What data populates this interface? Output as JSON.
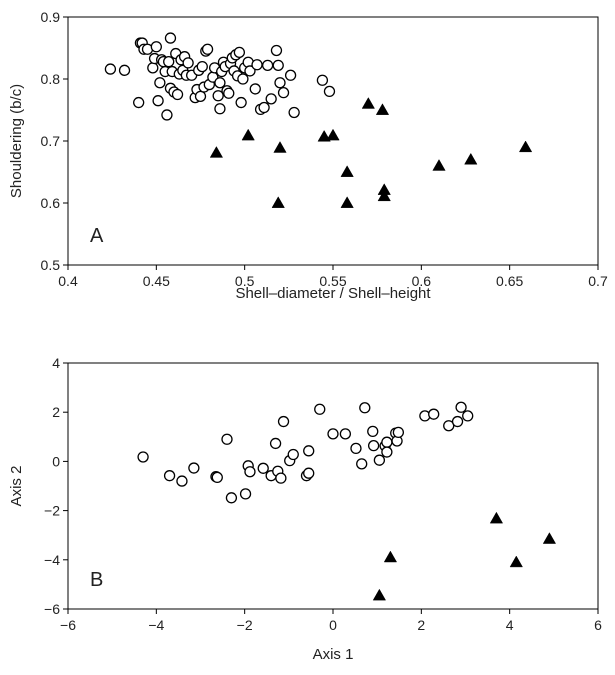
{
  "chart_data": [
    {
      "type": "scatter",
      "panel_label": "A",
      "xlabel": "Shell–diameter / Shell–height",
      "ylabel": "Shouldering (b/c)",
      "xlim": [
        0.4,
        0.7
      ],
      "ylim": [
        0.5,
        0.9
      ],
      "xticks": [
        0.4,
        0.45,
        0.5,
        0.55,
        0.6,
        0.65,
        0.7
      ],
      "yticks": [
        0.5,
        0.6,
        0.7,
        0.8,
        0.9
      ],
      "xtick_labels": [
        "0.4",
        "0.45",
        "0.5",
        "0.55",
        "0.6",
        "0.65",
        "0.7"
      ],
      "ytick_labels": [
        "0.5",
        "0.6",
        "0.7",
        "0.8",
        "0.9"
      ],
      "grid": false,
      "legend": "none",
      "series": [
        {
          "marker": "open-circle",
          "color": "#000000",
          "points": [
            [
              0.424,
              0.816
            ],
            [
              0.432,
              0.814
            ],
            [
              0.44,
              0.762
            ],
            [
              0.441,
              0.858
            ],
            [
              0.442,
              0.858
            ],
            [
              0.443,
              0.848
            ],
            [
              0.445,
              0.848
            ],
            [
              0.448,
              0.818
            ],
            [
              0.449,
              0.833
            ],
            [
              0.45,
              0.852
            ],
            [
              0.451,
              0.765
            ],
            [
              0.452,
              0.794
            ],
            [
              0.453,
              0.831
            ],
            [
              0.454,
              0.828
            ],
            [
              0.455,
              0.812
            ],
            [
              0.456,
              0.742
            ],
            [
              0.457,
              0.828
            ],
            [
              0.458,
              0.785
            ],
            [
              0.458,
              0.866
            ],
            [
              0.459,
              0.812
            ],
            [
              0.46,
              0.779
            ],
            [
              0.461,
              0.841
            ],
            [
              0.462,
              0.775
            ],
            [
              0.463,
              0.808
            ],
            [
              0.464,
              0.831
            ],
            [
              0.465,
              0.814
            ],
            [
              0.466,
              0.836
            ],
            [
              0.467,
              0.806
            ],
            [
              0.468,
              0.826
            ],
            [
              0.47,
              0.806
            ],
            [
              0.472,
              0.77
            ],
            [
              0.473,
              0.783
            ],
            [
              0.474,
              0.814
            ],
            [
              0.475,
              0.772
            ],
            [
              0.476,
              0.82
            ],
            [
              0.477,
              0.787
            ],
            [
              0.478,
              0.845
            ],
            [
              0.479,
              0.848
            ],
            [
              0.48,
              0.791
            ],
            [
              0.482,
              0.803
            ],
            [
              0.483,
              0.818
            ],
            [
              0.485,
              0.773
            ],
            [
              0.486,
              0.752
            ],
            [
              0.486,
              0.794
            ],
            [
              0.487,
              0.812
            ],
            [
              0.488,
              0.827
            ],
            [
              0.489,
              0.82
            ],
            [
              0.49,
              0.781
            ],
            [
              0.491,
              0.777
            ],
            [
              0.492,
              0.825
            ],
            [
              0.493,
              0.834
            ],
            [
              0.494,
              0.813
            ],
            [
              0.495,
              0.839
            ],
            [
              0.496,
              0.805
            ],
            [
              0.497,
              0.843
            ],
            [
              0.498,
              0.762
            ],
            [
              0.499,
              0.8
            ],
            [
              0.5,
              0.818
            ],
            [
              0.502,
              0.827
            ],
            [
              0.503,
              0.813
            ],
            [
              0.506,
              0.784
            ],
            [
              0.507,
              0.823
            ],
            [
              0.509,
              0.751
            ],
            [
              0.511,
              0.754
            ],
            [
              0.513,
              0.822
            ],
            [
              0.515,
              0.768
            ],
            [
              0.518,
              0.846
            ],
            [
              0.519,
              0.822
            ],
            [
              0.52,
              0.794
            ],
            [
              0.522,
              0.778
            ],
            [
              0.526,
              0.806
            ],
            [
              0.528,
              0.746
            ],
            [
              0.544,
              0.798
            ],
            [
              0.548,
              0.78
            ]
          ]
        },
        {
          "marker": "filled-triangle",
          "color": "#000000",
          "points": [
            [
              0.484,
              0.681
            ],
            [
              0.502,
              0.709
            ],
            [
              0.519,
              0.6
            ],
            [
              0.52,
              0.689
            ],
            [
              0.545,
              0.707
            ],
            [
              0.55,
              0.709
            ],
            [
              0.558,
              0.65
            ],
            [
              0.558,
              0.6
            ],
            [
              0.57,
              0.76
            ],
            [
              0.578,
              0.75
            ],
            [
              0.579,
              0.621
            ],
            [
              0.579,
              0.611
            ],
            [
              0.61,
              0.66
            ],
            [
              0.628,
              0.67
            ],
            [
              0.659,
              0.69
            ]
          ]
        }
      ]
    },
    {
      "type": "scatter",
      "panel_label": "B",
      "xlabel": "Axis 1",
      "ylabel": "Axis 2",
      "xlim": [
        -6,
        6
      ],
      "ylim": [
        -6,
        4
      ],
      "xticks": [
        -6,
        -4,
        -2,
        0,
        2,
        4,
        6
      ],
      "yticks": [
        -6,
        -4,
        -2,
        0,
        2,
        4
      ],
      "xtick_labels": [
        "−6",
        "−4",
        "−2",
        "0",
        "2",
        "4",
        "6"
      ],
      "ytick_labels": [
        "−6",
        "−4",
        "−2",
        "0",
        "2",
        "4"
      ],
      "grid": false,
      "legend": "none",
      "series": [
        {
          "marker": "open-circle",
          "color": "#000000",
          "points": [
            [
              -4.3,
              0.18
            ],
            [
              -3.7,
              -0.58
            ],
            [
              -3.42,
              -0.8
            ],
            [
              -3.15,
              -0.27
            ],
            [
              -2.65,
              -0.62
            ],
            [
              -2.62,
              -0.65
            ],
            [
              -2.4,
              0.9
            ],
            [
              -2.3,
              -1.48
            ],
            [
              -1.98,
              -1.32
            ],
            [
              -1.92,
              -0.18
            ],
            [
              -1.88,
              -0.42
            ],
            [
              -1.58,
              -0.28
            ],
            [
              -1.4,
              -0.58
            ],
            [
              -1.3,
              0.73
            ],
            [
              -1.25,
              -0.4
            ],
            [
              -1.18,
              -0.68
            ],
            [
              -1.12,
              1.62
            ],
            [
              -0.98,
              0.03
            ],
            [
              -0.9,
              0.28
            ],
            [
              -0.6,
              -0.58
            ],
            [
              -0.55,
              -0.48
            ],
            [
              -0.55,
              0.43
            ],
            [
              -0.3,
              2.12
            ],
            [
              0.0,
              1.12
            ],
            [
              0.28,
              1.12
            ],
            [
              0.52,
              0.53
            ],
            [
              0.65,
              -0.1
            ],
            [
              0.72,
              2.18
            ],
            [
              0.9,
              1.22
            ],
            [
              0.92,
              0.64
            ],
            [
              1.05,
              0.05
            ],
            [
              1.18,
              0.63
            ],
            [
              1.22,
              0.78
            ],
            [
              1.22,
              0.38
            ],
            [
              1.42,
              1.15
            ],
            [
              1.45,
              0.83
            ],
            [
              1.48,
              1.18
            ],
            [
              2.08,
              1.85
            ],
            [
              2.28,
              1.92
            ],
            [
              2.62,
              1.45
            ],
            [
              2.82,
              1.62
            ],
            [
              2.9,
              2.2
            ],
            [
              3.05,
              1.85
            ]
          ]
        },
        {
          "marker": "filled-triangle",
          "color": "#000000",
          "points": [
            [
              1.05,
              -5.45
            ],
            [
              1.3,
              -3.9
            ],
            [
              3.7,
              -2.32
            ],
            [
              4.15,
              -4.1
            ],
            [
              4.9,
              -3.15
            ]
          ]
        }
      ]
    }
  ]
}
